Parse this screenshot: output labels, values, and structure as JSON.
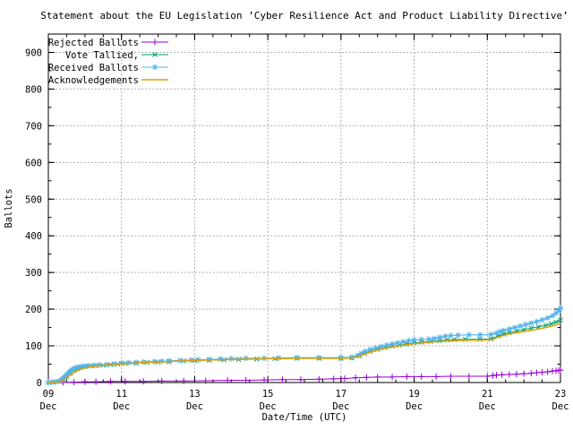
{
  "window": {
    "background": "#ffffff"
  },
  "chart_data": {
    "type": "line",
    "title": "Statement about the EU Legislation ’Cyber Resilience Act and Product Liability Directive’",
    "xlabel": "Date/Time (UTC)",
    "ylabel": "Ballots",
    "xlim_days": [
      0,
      14
    ],
    "ylim": [
      0,
      950
    ],
    "grid": true,
    "grid_color": "#b0b0b0",
    "axis_color": "#000000",
    "y_ticks": [
      0,
      100,
      200,
      300,
      400,
      500,
      600,
      700,
      800,
      900
    ],
    "x_ticks": [
      {
        "t": 0,
        "day": "09",
        "month": "Dec"
      },
      {
        "t": 2,
        "day": "11",
        "month": "Dec"
      },
      {
        "t": 4,
        "day": "13",
        "month": "Dec"
      },
      {
        "t": 6,
        "day": "15",
        "month": "Dec"
      },
      {
        "t": 8,
        "day": "17",
        "month": "Dec"
      },
      {
        "t": 10,
        "day": "19",
        "month": "Dec"
      },
      {
        "t": 12,
        "day": "21",
        "month": "Dec"
      },
      {
        "t": 14,
        "day": "23",
        "month": "Dec"
      }
    ],
    "legend": {
      "position": "top-left"
    },
    "series": [
      {
        "name": "Rejected Ballots",
        "color": "#9400d3",
        "marker": "plus",
        "points": [
          [
            0,
            0
          ],
          [
            0.4,
            0
          ],
          [
            0.7,
            1
          ],
          [
            1.0,
            2
          ],
          [
            1.3,
            2
          ],
          [
            1.7,
            3
          ],
          [
            2.1,
            3
          ],
          [
            2.6,
            3
          ],
          [
            3.1,
            4
          ],
          [
            3.7,
            4
          ],
          [
            4.3,
            5
          ],
          [
            4.9,
            6
          ],
          [
            5.4,
            6
          ],
          [
            5.9,
            7
          ],
          [
            6.4,
            8
          ],
          [
            6.9,
            8
          ],
          [
            7.4,
            9
          ],
          [
            7.8,
            10
          ],
          [
            8.1,
            11
          ],
          [
            8.4,
            13
          ],
          [
            8.7,
            14
          ],
          [
            9.0,
            15
          ],
          [
            9.4,
            15
          ],
          [
            9.8,
            16
          ],
          [
            10.2,
            16
          ],
          [
            10.6,
            16
          ],
          [
            11.0,
            17
          ],
          [
            11.5,
            17
          ],
          [
            12.0,
            17
          ],
          [
            12.15,
            19
          ],
          [
            12.25,
            20
          ],
          [
            12.4,
            21
          ],
          [
            12.6,
            22
          ],
          [
            12.8,
            23
          ],
          [
            13.0,
            24
          ],
          [
            13.2,
            25
          ],
          [
            13.35,
            27
          ],
          [
            13.5,
            28
          ],
          [
            13.65,
            29
          ],
          [
            13.78,
            31
          ],
          [
            13.88,
            32
          ],
          [
            13.95,
            33
          ],
          [
            14.0,
            34
          ]
        ]
      },
      {
        "name": "Vote Tallied,",
        "color": "#009e73",
        "marker": "cross",
        "points": [
          [
            0,
            0
          ],
          [
            0.15,
            1
          ],
          [
            0.3,
            3
          ],
          [
            0.4,
            8
          ],
          [
            0.5,
            16
          ],
          [
            0.6,
            25
          ],
          [
            0.7,
            33
          ],
          [
            0.8,
            38
          ],
          [
            0.9,
            41
          ],
          [
            1.0,
            43
          ],
          [
            1.15,
            45
          ],
          [
            1.3,
            46
          ],
          [
            1.5,
            47
          ],
          [
            1.7,
            49
          ],
          [
            1.9,
            50
          ],
          [
            2.1,
            52
          ],
          [
            2.4,
            53
          ],
          [
            2.7,
            55
          ],
          [
            3.0,
            56
          ],
          [
            3.3,
            57
          ],
          [
            3.7,
            59
          ],
          [
            4.0,
            60
          ],
          [
            4.4,
            61
          ],
          [
            4.8,
            62
          ],
          [
            5.2,
            63
          ],
          [
            5.7,
            64
          ],
          [
            6.2,
            65
          ],
          [
            6.8,
            66
          ],
          [
            7.4,
            66
          ],
          [
            8.0,
            66
          ],
          [
            8.3,
            67
          ],
          [
            8.5,
            73
          ],
          [
            8.65,
            79
          ],
          [
            8.8,
            85
          ],
          [
            9.0,
            90
          ],
          [
            9.2,
            95
          ],
          [
            9.4,
            99
          ],
          [
            9.6,
            102
          ],
          [
            9.8,
            105
          ],
          [
            10.0,
            108
          ],
          [
            10.2,
            110
          ],
          [
            10.45,
            112
          ],
          [
            10.7,
            114
          ],
          [
            10.9,
            116
          ],
          [
            11.1,
            117
          ],
          [
            11.4,
            118
          ],
          [
            11.8,
            118
          ],
          [
            12.1,
            119
          ],
          [
            12.3,
            127
          ],
          [
            12.45,
            132
          ],
          [
            12.6,
            136
          ],
          [
            12.8,
            140
          ],
          [
            13.0,
            144
          ],
          [
            13.2,
            148
          ],
          [
            13.4,
            152
          ],
          [
            13.6,
            156
          ],
          [
            13.75,
            160
          ],
          [
            13.88,
            165
          ],
          [
            14.0,
            170
          ]
        ]
      },
      {
        "name": "Received Ballots",
        "color": "#56b4e9",
        "marker": "star",
        "points": [
          [
            0,
            0
          ],
          [
            0.1,
            1
          ],
          [
            0.2,
            2
          ],
          [
            0.3,
            4
          ],
          [
            0.35,
            7
          ],
          [
            0.4,
            11
          ],
          [
            0.45,
            16
          ],
          [
            0.5,
            21
          ],
          [
            0.55,
            26
          ],
          [
            0.6,
            31
          ],
          [
            0.65,
            35
          ],
          [
            0.7,
            38
          ],
          [
            0.75,
            40
          ],
          [
            0.8,
            42
          ],
          [
            0.9,
            44
          ],
          [
            1.0,
            45
          ],
          [
            1.1,
            46
          ],
          [
            1.25,
            47
          ],
          [
            1.4,
            48
          ],
          [
            1.6,
            49
          ],
          [
            1.8,
            51
          ],
          [
            2.0,
            53
          ],
          [
            2.2,
            54
          ],
          [
            2.4,
            55
          ],
          [
            2.6,
            56
          ],
          [
            2.9,
            57
          ],
          [
            3.1,
            58
          ],
          [
            3.3,
            59
          ],
          [
            3.6,
            60
          ],
          [
            3.9,
            61
          ],
          [
            4.1,
            62
          ],
          [
            4.4,
            63
          ],
          [
            4.7,
            64
          ],
          [
            5.0,
            65
          ],
          [
            5.4,
            66
          ],
          [
            5.9,
            66
          ],
          [
            6.3,
            67
          ],
          [
            6.8,
            68
          ],
          [
            7.4,
            68
          ],
          [
            8.0,
            68
          ],
          [
            8.3,
            69
          ],
          [
            8.45,
            73
          ],
          [
            8.55,
            79
          ],
          [
            8.65,
            85
          ],
          [
            8.8,
            90
          ],
          [
            8.95,
            94
          ],
          [
            9.1,
            98
          ],
          [
            9.25,
            102
          ],
          [
            9.4,
            105
          ],
          [
            9.55,
            108
          ],
          [
            9.7,
            111
          ],
          [
            9.85,
            114
          ],
          [
            10.0,
            116
          ],
          [
            10.2,
            117
          ],
          [
            10.4,
            118
          ],
          [
            10.55,
            120
          ],
          [
            10.7,
            123
          ],
          [
            10.85,
            126
          ],
          [
            11.0,
            128
          ],
          [
            11.2,
            129
          ],
          [
            11.5,
            130
          ],
          [
            11.8,
            130
          ],
          [
            12.1,
            131
          ],
          [
            12.25,
            135
          ],
          [
            12.35,
            139
          ],
          [
            12.45,
            142
          ],
          [
            12.6,
            146
          ],
          [
            12.75,
            150
          ],
          [
            12.9,
            154
          ],
          [
            13.05,
            158
          ],
          [
            13.2,
            162
          ],
          [
            13.35,
            166
          ],
          [
            13.5,
            171
          ],
          [
            13.65,
            176
          ],
          [
            13.78,
            182
          ],
          [
            13.88,
            189
          ],
          [
            13.95,
            196
          ],
          [
            14.0,
            203
          ]
        ]
      },
      {
        "name": "Acknowledgements",
        "color": "#e69f00",
        "marker": "none",
        "points": [
          [
            0,
            0
          ],
          [
            0.3,
            2
          ],
          [
            0.45,
            9
          ],
          [
            0.6,
            20
          ],
          [
            0.75,
            30
          ],
          [
            0.9,
            37
          ],
          [
            1.05,
            41
          ],
          [
            1.25,
            44
          ],
          [
            1.5,
            47
          ],
          [
            1.8,
            49
          ],
          [
            2.1,
            51
          ],
          [
            2.5,
            54
          ],
          [
            3.0,
            56
          ],
          [
            3.5,
            58
          ],
          [
            4.0,
            60
          ],
          [
            4.6,
            62
          ],
          [
            5.2,
            63
          ],
          [
            6.0,
            65
          ],
          [
            6.8,
            66
          ],
          [
            7.6,
            66
          ],
          [
            8.1,
            66
          ],
          [
            8.4,
            69
          ],
          [
            8.6,
            76
          ],
          [
            8.8,
            83
          ],
          [
            9.0,
            89
          ],
          [
            9.25,
            94
          ],
          [
            9.5,
            99
          ],
          [
            9.8,
            103
          ],
          [
            10.1,
            107
          ],
          [
            10.4,
            110
          ],
          [
            10.7,
            112
          ],
          [
            11.0,
            114
          ],
          [
            11.4,
            115
          ],
          [
            11.9,
            116
          ],
          [
            12.15,
            117
          ],
          [
            12.3,
            124
          ],
          [
            12.5,
            130
          ],
          [
            12.7,
            134
          ],
          [
            13.0,
            139
          ],
          [
            13.3,
            144
          ],
          [
            13.6,
            150
          ],
          [
            13.85,
            156
          ],
          [
            14.0,
            162
          ]
        ]
      }
    ]
  }
}
